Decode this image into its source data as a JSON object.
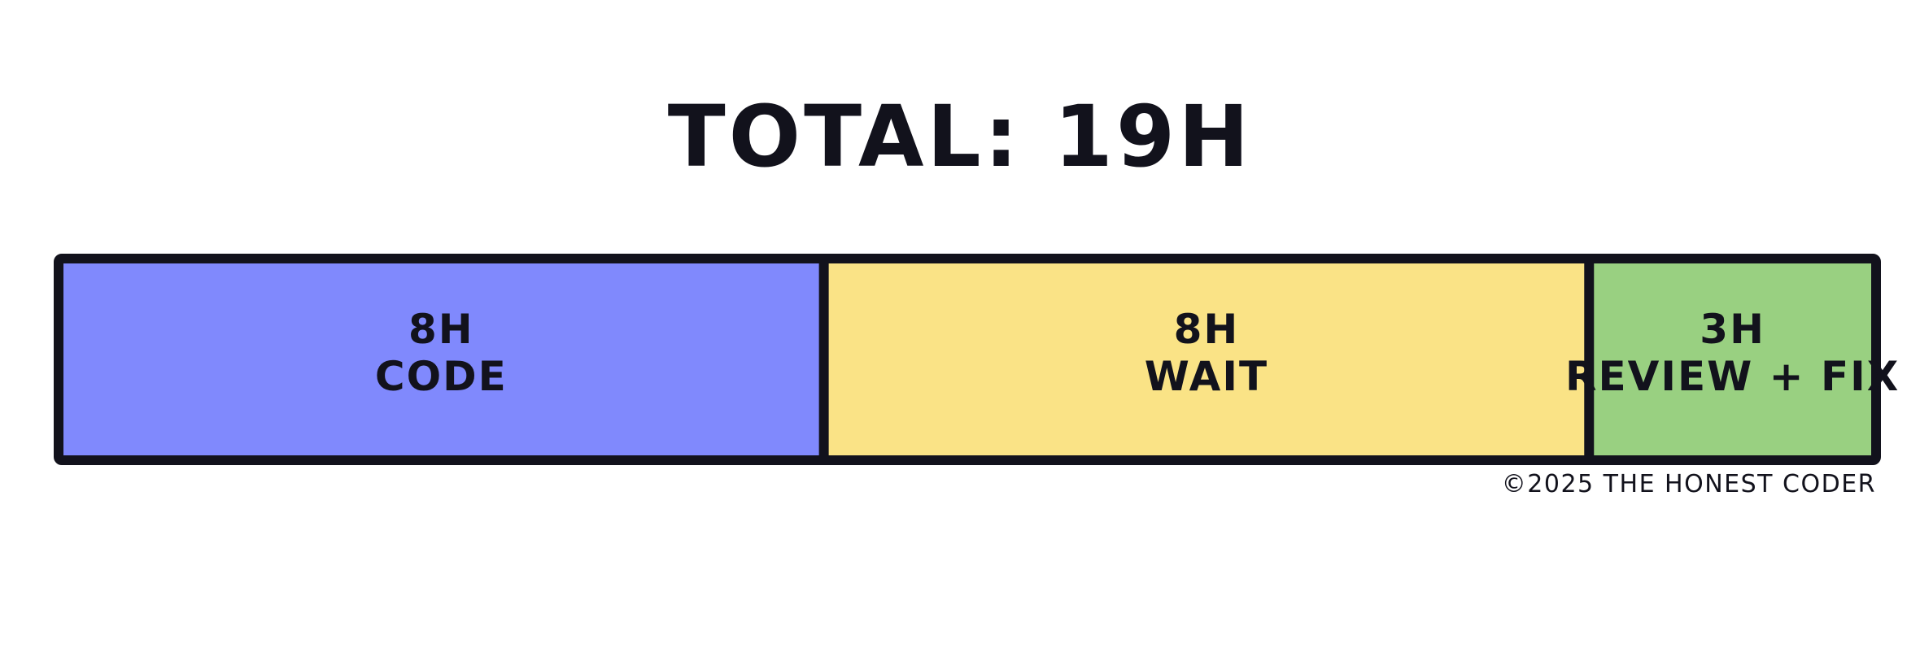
{
  "chart_data": {
    "type": "bar",
    "orientation": "horizontal-stacked",
    "title": "TOTAL: 19H",
    "unit": "H",
    "total": 19,
    "segments": [
      {
        "name": "CODE",
        "value": 8,
        "value_label": "8H",
        "color": "#8089fd"
      },
      {
        "name": "WAIT",
        "value": 8,
        "value_label": "8H",
        "color": "#fae386"
      },
      {
        "name": "REVIEW + FIX",
        "value": 3,
        "value_label": "3H",
        "color": "#99d081"
      }
    ],
    "grid": false,
    "legend": "none"
  },
  "footer": {
    "credit": "©2025 THE HONEST CODER"
  }
}
